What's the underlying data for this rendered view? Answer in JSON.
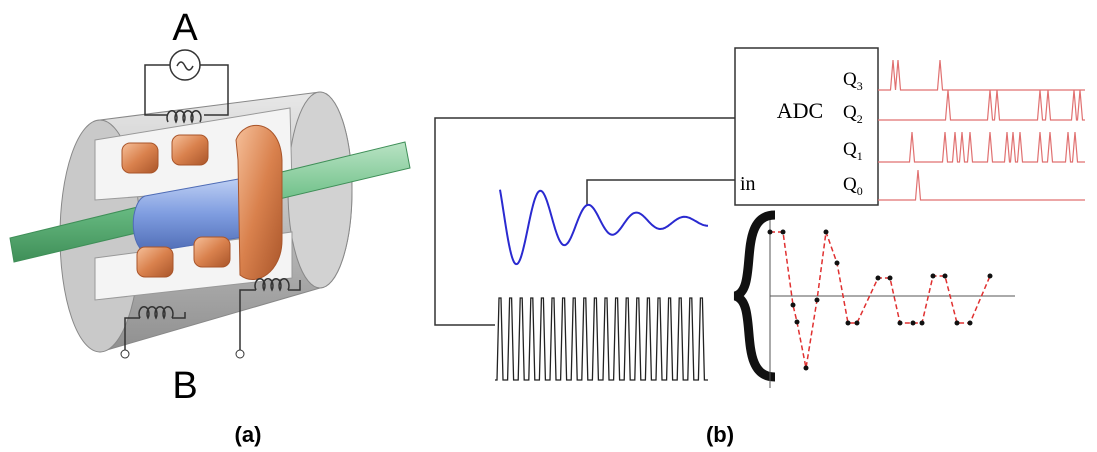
{
  "panel_a": {
    "source_label": "A",
    "detector_label": "B",
    "caption": "(a)"
  },
  "panel_b": {
    "converter": "ADC",
    "input": "in",
    "outputs": [
      {
        "letter": "Q",
        "index": "3"
      },
      {
        "letter": "Q",
        "index": "2"
      },
      {
        "letter": "Q",
        "index": "1"
      },
      {
        "letter": "Q",
        "index": "0"
      }
    ],
    "caption": "(b)"
  }
}
